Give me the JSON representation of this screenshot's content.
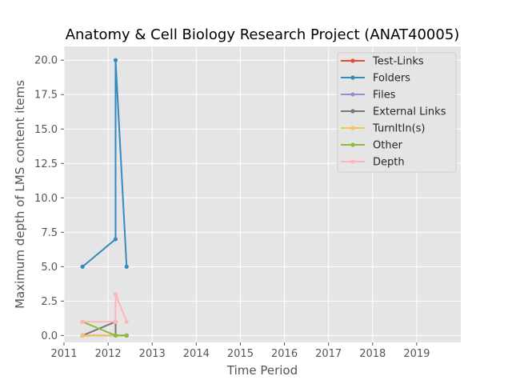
{
  "chart_data": {
    "type": "line",
    "title": "Anatomy & Cell Biology Research Project (ANAT40005)",
    "xlabel": "Time Period",
    "ylabel": "Maximum depth of LMS content items",
    "xlim": [
      2011.0,
      2020.0
    ],
    "ylim": [
      -0.5,
      21.0
    ],
    "x_ticks": [
      2011,
      2012,
      2013,
      2014,
      2015,
      2016,
      2017,
      2018,
      2019
    ],
    "x_tick_labels": [
      "2011",
      "2012",
      "2013",
      "2014",
      "2015",
      "2016",
      "2017",
      "2018",
      "2019"
    ],
    "y_ticks": [
      0.0,
      2.5,
      5.0,
      7.5,
      10.0,
      12.5,
      15.0,
      17.5,
      20.0
    ],
    "y_tick_labels": [
      "0.0",
      "2.5",
      "5.0",
      "7.5",
      "10.0",
      "12.5",
      "15.0",
      "17.5",
      "20.0"
    ],
    "grid": true,
    "legend_position": "upper right",
    "series": [
      {
        "name": "Test-Links",
        "color": "#E24A33",
        "x": [
          2011.42,
          2012.17,
          2012.17,
          2012.42
        ],
        "y": [
          0,
          0,
          0,
          0
        ]
      },
      {
        "name": "Folders",
        "color": "#348ABD",
        "x": [
          2011.42,
          2012.17,
          2012.17,
          2012.42
        ],
        "y": [
          5,
          7,
          20,
          5
        ]
      },
      {
        "name": "Files",
        "color": "#988ED5",
        "x": [
          2011.42,
          2012.17,
          2012.17,
          2012.42
        ],
        "y": [
          0,
          0,
          0,
          0
        ]
      },
      {
        "name": "External Links",
        "color": "#777777",
        "x": [
          2011.42,
          2012.17,
          2012.17,
          2012.42
        ],
        "y": [
          0,
          1,
          0,
          0
        ]
      },
      {
        "name": "TurnItIn(s)",
        "color": "#FBC15E",
        "x": [
          2011.42,
          2012.17,
          2012.17,
          2012.42
        ],
        "y": [
          0,
          0,
          0,
          0
        ]
      },
      {
        "name": "Other",
        "color": "#8EBA42",
        "x": [
          2011.42,
          2012.17,
          2012.17,
          2012.42
        ],
        "y": [
          1,
          0,
          0,
          0
        ]
      },
      {
        "name": "Depth",
        "color": "#FFB5B8",
        "x": [
          2011.42,
          2012.17,
          2012.17,
          2012.42
        ],
        "y": [
          1,
          1,
          3,
          1
        ]
      }
    ]
  }
}
